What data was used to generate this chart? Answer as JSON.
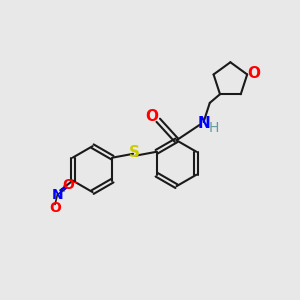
{
  "bg_color": "#e8e8e8",
  "bond_color": "#1a1a1a",
  "N_color": "#0000ff",
  "O_color": "#ff0000",
  "S_color": "#cccc00",
  "H_color": "#5f9ea0",
  "figsize": [
    3.0,
    3.0
  ],
  "dpi": 100,
  "xlim": [
    0,
    10
  ],
  "ylim": [
    0,
    10
  ],
  "ring_r": 0.78,
  "lw": 1.5,
  "dbond_off": 0.1,
  "font_size": 10
}
